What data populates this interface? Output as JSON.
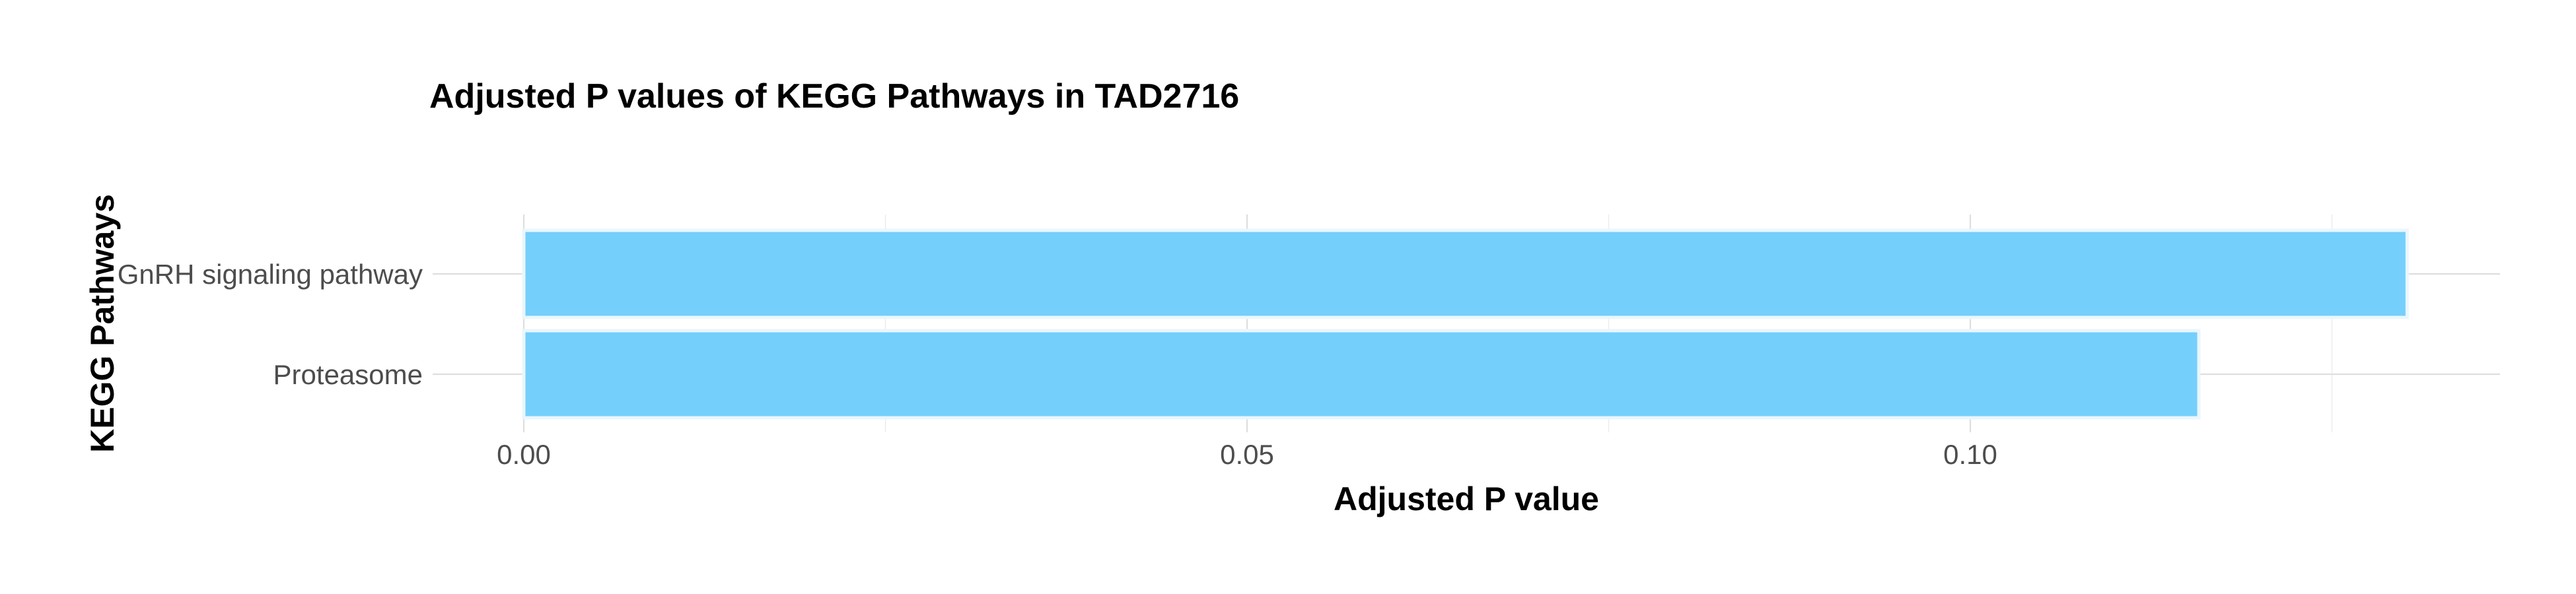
{
  "chart_data": {
    "type": "bar",
    "orientation": "horizontal",
    "title": "Adjusted P values of KEGG Pathways in TAD2716",
    "xlabel": "Adjusted P value",
    "ylabel": "KEGG Pathways",
    "categories": [
      "GnRH signaling pathway",
      "Proteasome"
    ],
    "values": [
      0.1302,
      0.1158
    ],
    "xlim": [
      0,
      0.137
    ],
    "xticks": [
      0.0,
      0.05,
      0.1
    ],
    "xtick_labels": [
      "0.00",
      "0.05",
      "0.10"
    ],
    "grid": true,
    "legend": "none",
    "bar_color": "#74CFFB",
    "bar_outline_color": "#EAF6FD"
  }
}
